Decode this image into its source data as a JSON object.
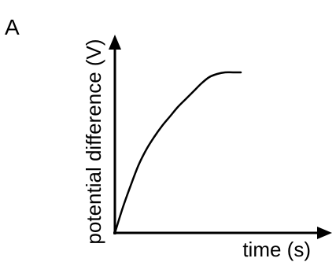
{
  "chart_data": {
    "type": "line",
    "panel_label": "A",
    "title": "",
    "xlabel": "time (s)",
    "ylabel": "potential difference (V)",
    "grid": false,
    "legend": "none",
    "axis_ticks": "none",
    "xlim": [
      0,
      10
    ],
    "ylim": [
      0,
      10
    ],
    "series": [
      {
        "color": "#000000",
        "x": [
          0,
          0.5,
          1,
          1.5,
          2,
          2.5,
          3,
          3.5,
          4,
          4.5,
          5,
          5.5,
          6,
          6.5,
          7,
          7.5,
          8
        ],
        "y": [
          0,
          1.6,
          3.0,
          4.3,
          5.3,
          6.1,
          6.8,
          7.4,
          8.0,
          8.5,
          9.0,
          9.5,
          9.9,
          10.1,
          10.2,
          10.2,
          10.2
        ]
      }
    ]
  }
}
